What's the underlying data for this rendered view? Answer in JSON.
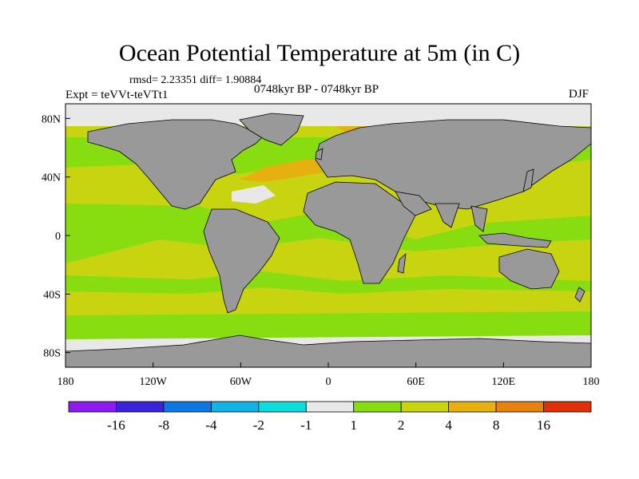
{
  "title": "Ocean Potential Temperature at 5m (in C)",
  "stats_text": "rmsd= 2.23351 diff= 1.90884",
  "experiment_text": "Expt = teVVt-teVTt1",
  "period_text": "0748kyr BP - 0748kyr BP",
  "season_text": "DJF",
  "map": {
    "projection": "cylindrical-equidistant",
    "lon_range": [
      -180,
      180
    ],
    "lat_range": [
      -90,
      90
    ],
    "land_color": "#999999",
    "x_ticks": [
      {
        "lon": -180,
        "label": "180"
      },
      {
        "lon": -120,
        "label": "120W"
      },
      {
        "lon": -60,
        "label": "60W"
      },
      {
        "lon": 0,
        "label": "0"
      },
      {
        "lon": 60,
        "label": "60E"
      },
      {
        "lon": 120,
        "label": "120E"
      },
      {
        "lon": 180,
        "label": "180"
      }
    ],
    "y_ticks": [
      {
        "lat": 80,
        "label": "80N"
      },
      {
        "lat": 40,
        "label": "40N"
      },
      {
        "lat": 0,
        "label": "0"
      },
      {
        "lat": -40,
        "label": "40S"
      },
      {
        "lat": -80,
        "label": "80S"
      }
    ]
  },
  "colorbar": {
    "colors": [
      "#8d1aef",
      "#3a23da",
      "#0c78e6",
      "#11b4e6",
      "#0fdcdc",
      "#e8e8e8",
      "#88dd11",
      "#c8d410",
      "#e6b010",
      "#e8820e",
      "#e0300a"
    ],
    "labels": [
      {
        "after_box": 1,
        "text": "-16"
      },
      {
        "after_box": 2,
        "text": "-8"
      },
      {
        "after_box": 3,
        "text": "-4"
      },
      {
        "after_box": 4,
        "text": "-2"
      },
      {
        "after_box": 5,
        "text": "-1"
      },
      {
        "after_box": 6,
        "text": "1"
      },
      {
        "after_box": 7,
        "text": "2"
      },
      {
        "after_box": 8,
        "text": "4"
      },
      {
        "after_box": 9,
        "text": "8"
      },
      {
        "after_box": 10,
        "text": "16"
      }
    ]
  }
}
